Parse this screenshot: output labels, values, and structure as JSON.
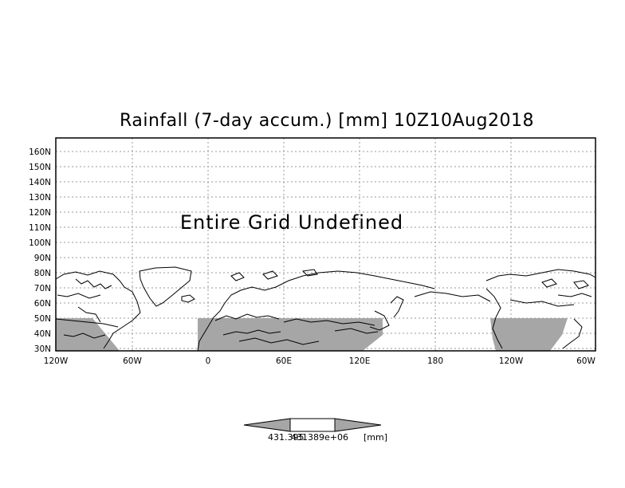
{
  "map": {
    "title": "Rainfall (7-day accum.) [mm] 10Z10Aug2018",
    "message": "Entire Grid Undefined",
    "lat_labels": [
      "160N",
      "150N",
      "140N",
      "130N",
      "120N",
      "110N",
      "100N",
      "90N",
      "80N",
      "70N",
      "60N",
      "50N",
      "40N",
      "30N"
    ],
    "lon_labels": [
      "120W",
      "60W",
      "0",
      "60E",
      "120E",
      "180",
      "120W",
      "60W"
    ],
    "colors": {
      "land_shaded": "#a6a6a6",
      "background": "#ffffff",
      "outline": "#000000"
    }
  },
  "colorbar": {
    "low_label": "431.395",
    "high_label": "431389e+06",
    "unit": "[mm]"
  }
}
